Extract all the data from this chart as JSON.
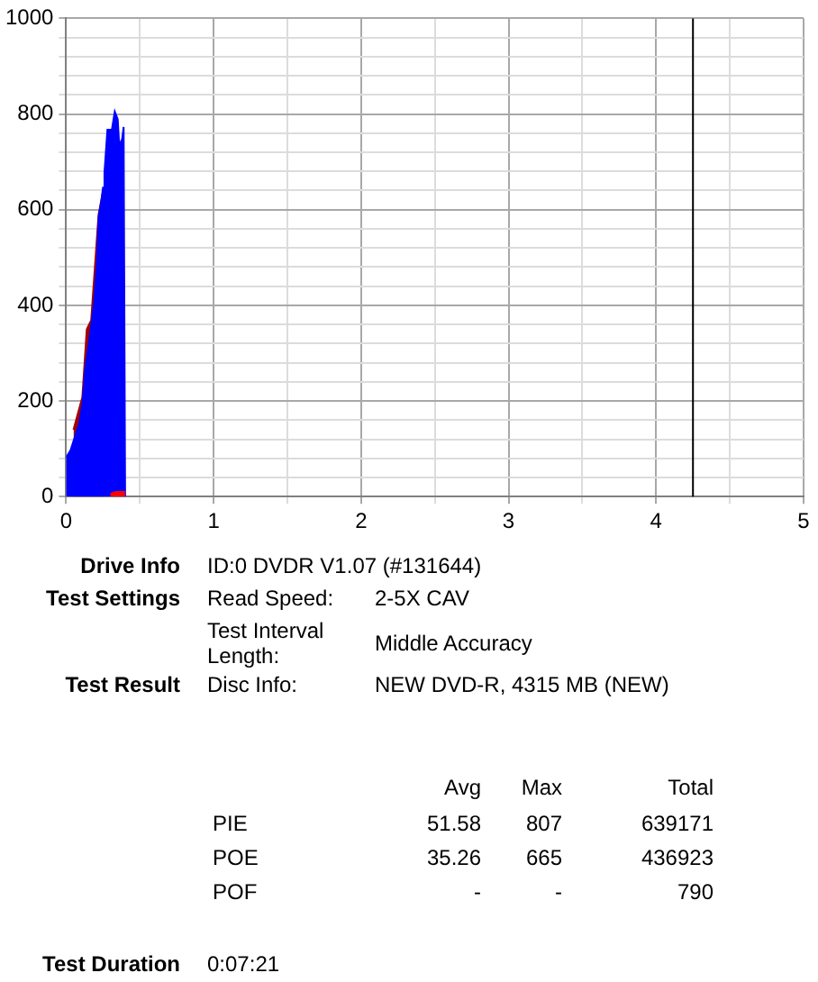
{
  "chart_data": {
    "type": "area",
    "xlim": [
      0,
      5
    ],
    "ylim": [
      0,
      1000
    ],
    "xticks": [
      0,
      {
        "value": 0.5,
        "label": null
      },
      1,
      {
        "value": 1.5,
        "label": null
      },
      2,
      {
        "value": 2.5,
        "label": null
      },
      3,
      {
        "value": 3.5,
        "label": null
      },
      4,
      {
        "value": 4.5,
        "label": null
      },
      5
    ],
    "yticks": [
      0,
      {
        "value": 40,
        "label": null
      },
      {
        "value": 80,
        "label": null
      },
      {
        "value": 120,
        "label": null
      },
      {
        "value": 160,
        "label": null
      },
      200,
      {
        "value": 240,
        "label": null
      },
      {
        "value": 280,
        "label": null
      },
      {
        "value": 320,
        "label": null
      },
      {
        "value": 360,
        "label": null
      },
      400,
      {
        "value": 440,
        "label": null
      },
      {
        "value": 480,
        "label": null
      },
      {
        "value": 520,
        "label": null
      },
      {
        "value": 560,
        "label": null
      },
      600,
      {
        "value": 640,
        "label": null
      },
      {
        "value": 680,
        "label": null
      },
      {
        "value": 720,
        "label": null
      },
      {
        "value": 760,
        "label": null
      },
      800,
      {
        "value": 840,
        "label": null
      },
      {
        "value": 880,
        "label": null
      },
      {
        "value": 920,
        "label": null
      },
      {
        "value": 960,
        "label": null
      },
      1000
    ],
    "grid": true,
    "legend": false,
    "series": [
      {
        "color": "#a00000",
        "x": [
          0.05,
          0.11,
          0.14,
          0.17,
          0.2,
          0.22,
          0.25
        ],
        "values": [
          140,
          208,
          350,
          369,
          502,
          590,
          638
        ]
      },
      {
        "color": "#0000ff",
        "x": [
          0,
          0.03,
          0.05,
          0.07,
          0.09,
          0.11,
          0.13,
          0.15,
          0.17,
          0.19,
          0.21,
          0.22,
          0.24,
          0.25,
          0.26,
          0.28,
          0.31,
          0.33,
          0.35,
          0.36,
          0.38,
          0.39,
          0.4
        ],
        "values": [
          82,
          97,
          116,
          135,
          154,
          192,
          268,
          312,
          356,
          407,
          495,
          583,
          621,
          646,
          678,
          767,
          767,
          805,
          789,
          735,
          748,
          773,
          0
        ]
      },
      {
        "color": "#ff0000",
        "x": [
          0.3,
          0.32,
          0.34,
          0.4
        ],
        "values": [
          5,
          8,
          10,
          10
        ]
      }
    ],
    "ref_lines": [
      {
        "axis": "x",
        "value": 4.25,
        "color": "#000000"
      }
    ],
    "annotations": [
      "Drive Info",
      "ID:0 DVDR V1.07 (#131644)",
      "Test Settings",
      "Read Speed:",
      "2-5X CAV",
      "Test Interval Length:",
      "Middle Accuracy",
      "Test Result",
      "Disc Info:",
      "NEW DVD-R, 4315 MB (NEW)",
      "Avg",
      "Max",
      "Total",
      "PIE",
      "51.58",
      "807",
      "639171",
      "POE",
      "35.26",
      "665",
      "436923",
      "POF",
      "-",
      "-",
      "790",
      "Test Duration",
      "0:07:21"
    ]
  }
}
